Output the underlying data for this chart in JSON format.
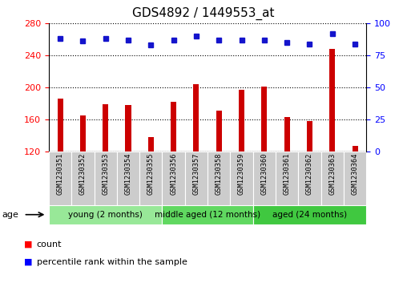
{
  "title": "GDS4892 / 1449553_at",
  "samples": [
    "GSM1230351",
    "GSM1230352",
    "GSM1230353",
    "GSM1230354",
    "GSM1230355",
    "GSM1230356",
    "GSM1230357",
    "GSM1230358",
    "GSM1230359",
    "GSM1230360",
    "GSM1230361",
    "GSM1230362",
    "GSM1230363",
    "GSM1230364"
  ],
  "counts": [
    186,
    165,
    179,
    178,
    138,
    182,
    204,
    171,
    197,
    201,
    163,
    158,
    248,
    127
  ],
  "percentiles": [
    88,
    86,
    88,
    87,
    83,
    87,
    90,
    87,
    87,
    87,
    85,
    84,
    92,
    84
  ],
  "groups": [
    {
      "label": "young (2 months)",
      "start": 0,
      "end": 4
    },
    {
      "label": "middle aged (12 months)",
      "start": 5,
      "end": 8
    },
    {
      "label": "aged (24 months)",
      "start": 9,
      "end": 13
    }
  ],
  "group_colors": [
    "#98E898",
    "#60D860",
    "#40C840"
  ],
  "ylim_left": [
    120,
    280
  ],
  "ylim_right": [
    0,
    100
  ],
  "yticks_left": [
    120,
    160,
    200,
    240,
    280
  ],
  "yticks_right": [
    0,
    25,
    50,
    75,
    100
  ],
  "bar_color": "#CC0000",
  "dot_color": "#1414CC",
  "title_fontsize": 11,
  "tick_fontsize": 8,
  "legend_label_count": "count",
  "legend_label_percentile": "percentile rank within the sample",
  "age_label": "age",
  "bg_color": "#FFFFFF",
  "plot_bg": "#FFFFFF",
  "cell_bg": "#CCCCCC"
}
